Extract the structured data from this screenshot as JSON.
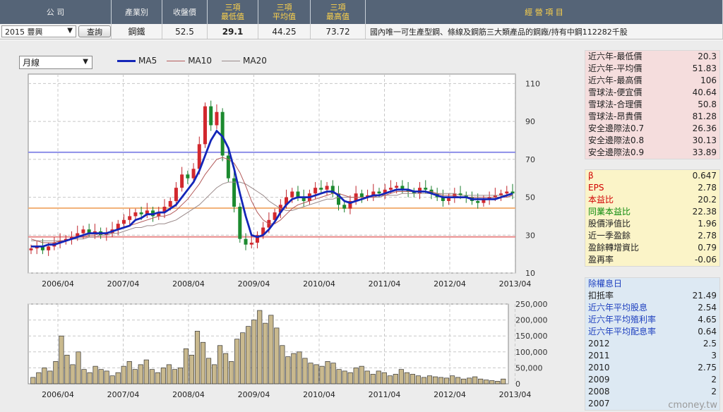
{
  "header": {
    "cols": [
      {
        "label": "公  司",
        "w": 158,
        "cls": "first"
      },
      {
        "label": "產業別",
        "w": 72,
        "cls": "plain"
      },
      {
        "label": "收盤價",
        "w": 64,
        "cls": "plain"
      },
      {
        "label": "三項\n最低值",
        "w": 72,
        "cls": ""
      },
      {
        "label": "三項\n平均值",
        "w": 74,
        "cls": ""
      },
      {
        "label": "三項\n最高值",
        "w": 78,
        "cls": ""
      },
      {
        "label": "經  營  項  目",
        "w": 506,
        "cls": ""
      }
    ],
    "company_select": "2015 豐興",
    "query_button": "查詢",
    "industry": "鋼鐵",
    "close": "52.5",
    "min_val": "29.1",
    "avg_val": "44.25",
    "max_val": "73.72",
    "business": "國內唯一可生產型鋼、條線及鋼筋三大類產品的鋼廠/持有中鋼112282千股"
  },
  "controls": {
    "period": "月線"
  },
  "legend": [
    {
      "name": "MA5",
      "color": "#1426b8"
    },
    {
      "name": "MA10",
      "color": "#b35a5a"
    },
    {
      "name": "MA20",
      "color": "#9a8a8a"
    }
  ],
  "chart_data": [
    {
      "type": "candlestick",
      "yticks": [
        10,
        30,
        50,
        70,
        90,
        110
      ],
      "ylim": [
        10,
        115
      ],
      "xticks": [
        "2006/04",
        "2007/04",
        "2008/04",
        "2009/04",
        "2010/04",
        "2011/04",
        "2012/04",
        "2013/04"
      ],
      "reference_lines": [
        {
          "value": 73.72,
          "color": "#8d8fe8"
        },
        {
          "value": 44.25,
          "color": "#f2b27a"
        },
        {
          "value": 29.1,
          "color": "#e88a8a"
        }
      ],
      "close": [
        23,
        24,
        22,
        24,
        26,
        27,
        28,
        29,
        31,
        33,
        31,
        32,
        30,
        31,
        33,
        36,
        38,
        40,
        42,
        41,
        43,
        40,
        42,
        45,
        48,
        55,
        62,
        60,
        65,
        78,
        98,
        88,
        95,
        72,
        60,
        45,
        28,
        25,
        26,
        30,
        34,
        38,
        42,
        46,
        50,
        53,
        50,
        48,
        52,
        55,
        54,
        56,
        52,
        46,
        44,
        48,
        52,
        50,
        51,
        53,
        52,
        54,
        55,
        56,
        54,
        53,
        52,
        55,
        54,
        52,
        50,
        48,
        50,
        52,
        51,
        50,
        48,
        47,
        49,
        50,
        51,
        52,
        53,
        52
      ],
      "ma5": [
        24,
        24,
        24,
        25,
        25,
        26,
        27,
        28,
        29,
        30,
        31,
        31,
        31,
        31,
        32,
        33,
        34,
        35,
        38,
        39,
        41,
        41,
        42,
        42,
        44,
        46,
        50,
        54,
        58,
        64,
        72,
        80,
        85,
        82,
        76,
        65,
        52,
        40,
        30,
        29,
        30,
        33,
        37,
        42,
        46,
        49,
        50,
        50,
        50,
        51,
        52,
        53,
        53,
        51,
        48,
        47,
        48,
        49,
        50,
        51,
        51,
        52,
        53,
        54,
        54,
        54,
        53,
        53,
        53,
        52,
        51,
        50,
        50,
        50,
        50,
        50,
        49,
        49,
        49,
        49,
        49,
        50,
        51,
        52
      ],
      "ma10": [
        28,
        27,
        26,
        26,
        26,
        27,
        27,
        28,
        29,
        29,
        30,
        30,
        31,
        31,
        32,
        33,
        34,
        35,
        36,
        37,
        38,
        39,
        40,
        40,
        41,
        43,
        46,
        49,
        53,
        57,
        62,
        66,
        70,
        71,
        70,
        68,
        63,
        56,
        48,
        42,
        38,
        36,
        36,
        38,
        41,
        44,
        46,
        47,
        48,
        49,
        50,
        51,
        52,
        52,
        51,
        50,
        50,
        50,
        50,
        50,
        51,
        51,
        52,
        53,
        53,
        53,
        53,
        53,
        53,
        53,
        52,
        51,
        51,
        51,
        50,
        50,
        50,
        50,
        50,
        50,
        50,
        50,
        50,
        51
      ],
      "ma20": [
        27,
        27,
        27,
        27,
        27,
        27,
        27,
        28,
        28,
        28,
        29,
        29,
        30,
        30,
        31,
        31,
        32,
        33,
        34,
        34,
        35,
        35,
        36,
        36,
        37,
        38,
        40,
        42,
        44,
        46,
        49,
        52,
        55,
        57,
        58,
        58,
        58,
        57,
        55,
        53,
        51,
        48,
        46,
        44,
        43,
        43,
        44,
        45,
        46,
        47,
        48,
        49,
        49,
        50,
        50,
        50,
        50,
        50,
        50,
        50,
        50,
        51,
        51,
        51,
        52,
        52,
        52,
        52,
        52,
        52,
        52,
        52,
        52,
        52,
        51,
        51,
        51,
        51,
        51,
        51,
        51,
        51,
        51,
        51
      ]
    },
    {
      "type": "bar",
      "yticks": [
        0,
        50000,
        100000,
        150000,
        200000,
        250000
      ],
      "ytick_labels": [
        "0",
        "50,000",
        "100,000",
        "150,000",
        "200,000",
        "250,000"
      ],
      "ylim": [
        0,
        250000
      ],
      "xticks": [
        "2006/04",
        "2007/04",
        "2008/04",
        "2009/04",
        "2010/04",
        "2011/04",
        "2012/04",
        "2013/04"
      ],
      "values": [
        20000,
        35000,
        50000,
        40000,
        70000,
        150000,
        90000,
        60000,
        100000,
        45000,
        35000,
        55000,
        45000,
        40000,
        25000,
        35000,
        55000,
        70000,
        45000,
        60000,
        75000,
        45000,
        35000,
        50000,
        60000,
        45000,
        50000,
        110000,
        90000,
        165000,
        130000,
        80000,
        60000,
        120000,
        95000,
        70000,
        140000,
        160000,
        180000,
        200000,
        230000,
        190000,
        215000,
        175000,
        120000,
        85000,
        95000,
        100000,
        80000,
        65000,
        60000,
        55000,
        70000,
        65000,
        45000,
        40000,
        35000,
        50000,
        55000,
        40000,
        30000,
        40000,
        35000,
        25000,
        30000,
        45000,
        35000,
        30000,
        25000,
        20000,
        25000,
        22000,
        20000,
        18000,
        25000,
        20000,
        15000,
        18000,
        22000,
        15000,
        12000,
        10000,
        8000,
        15000
      ]
    }
  ],
  "side": {
    "box1": [
      {
        "k": "近六年-最低價",
        "v": "20.3"
      },
      {
        "k": "近六年-平均價",
        "v": "51.83"
      },
      {
        "k": "近六年-最高價",
        "v": "106"
      },
      {
        "k": "雪球法-便宜價",
        "v": "40.64"
      },
      {
        "k": "雪球法-合理價",
        "v": "50.8"
      },
      {
        "k": "雪球法-昂貴價",
        "v": "81.28"
      },
      {
        "k": "安全邊際法0.7",
        "v": "26.36"
      },
      {
        "k": "安全邊際法0.8",
        "v": "30.13"
      },
      {
        "k": "安全邊際法0.9",
        "v": "33.89"
      }
    ],
    "box2": [
      {
        "k": "β",
        "v": "0.647",
        "c": "red"
      },
      {
        "k": " EPS",
        "v": "2.78",
        "c": "red"
      },
      {
        "k": "本益比",
        "v": "20.2",
        "c": "red"
      },
      {
        "k": "同業本益比",
        "v": "22.38",
        "c": "green"
      },
      {
        "k": "股價淨值比",
        "v": "1.96",
        "c": ""
      },
      {
        "k": "近一季盈餘",
        "v": "2.78",
        "c": ""
      },
      {
        "k": "盈餘轉增資比",
        "v": "0.79",
        "c": ""
      },
      {
        "k": "盈再率",
        "v": "-0.06",
        "c": ""
      }
    ],
    "box3": [
      {
        "k": "除權息日",
        "v": "",
        "c": "blue"
      },
      {
        "k": "扣抵率",
        "v": "21.49",
        "c": ""
      },
      {
        "k": "近六年平均股息",
        "v": "2.54",
        "c": "blue"
      },
      {
        "k": "近六年平均殖利率",
        "v": "4.65",
        "c": "blue"
      },
      {
        "k": "近六年平均配息率",
        "v": "0.64",
        "c": "blue"
      },
      {
        "k": "2012",
        "v": "2.5",
        "c": ""
      },
      {
        "k": "2011",
        "v": "3",
        "c": ""
      },
      {
        "k": "2010",
        "v": "2.75",
        "c": ""
      },
      {
        "k": "2009",
        "v": "2",
        "c": ""
      },
      {
        "k": "2008",
        "v": "2",
        "c": ""
      },
      {
        "k": "2007",
        "v": "",
        "c": ""
      }
    ]
  },
  "watermark": "cmoney.tw"
}
